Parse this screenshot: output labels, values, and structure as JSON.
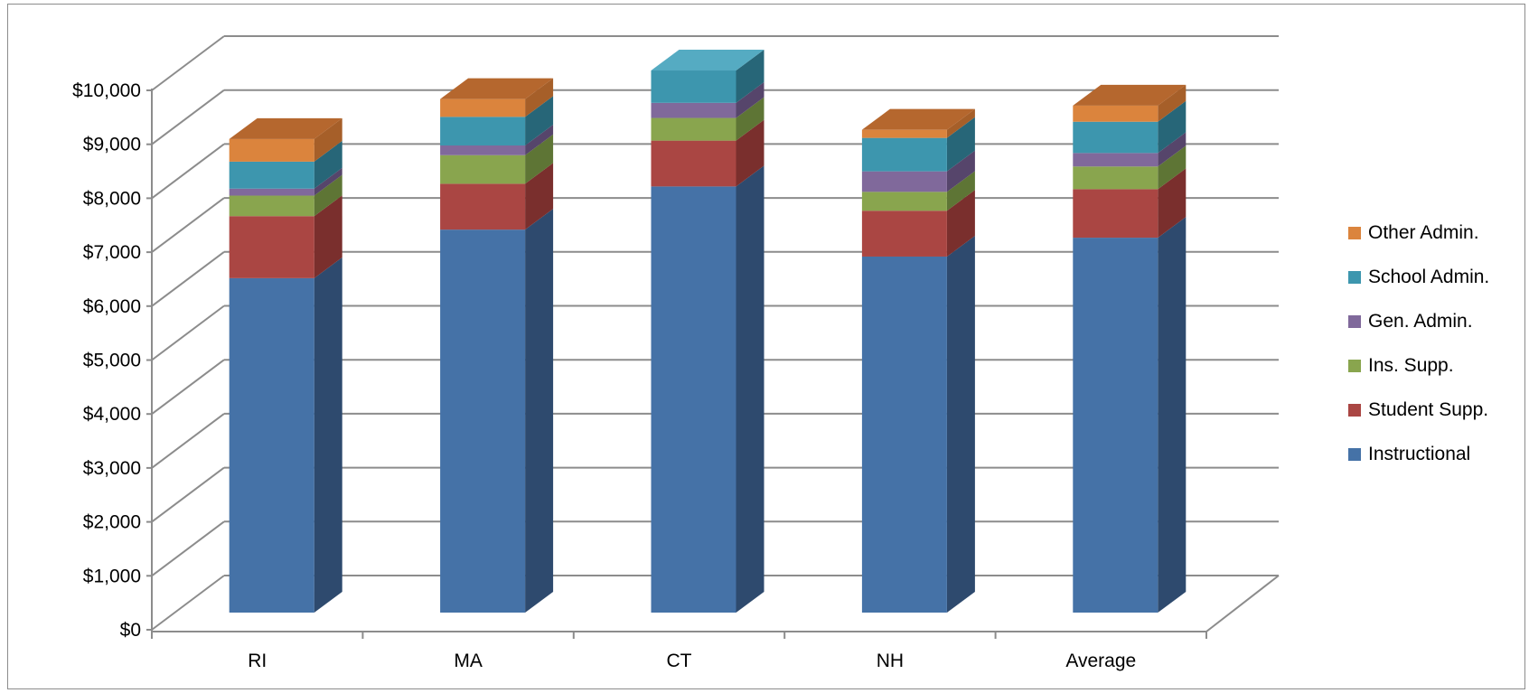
{
  "chart_data": {
    "type": "bar",
    "stacked": true,
    "three_d": true,
    "categories": [
      "RI",
      "MA",
      "CT",
      "NH",
      "Average"
    ],
    "series": [
      {
        "name": "Instructional",
        "color": "#4572A7",
        "side_color": "#2E4A6E",
        "top_color": "#5C88C0",
        "values": [
          6200,
          7100,
          7900,
          6600,
          6950
        ]
      },
      {
        "name": "Student Supp.",
        "color": "#AA4643",
        "side_color": "#7A2F2D",
        "top_color": "#C05A57",
        "values": [
          1150,
          850,
          850,
          850,
          900
        ]
      },
      {
        "name": "Ins. Supp.",
        "color": "#89A54E",
        "side_color": "#5E7535",
        "top_color": "#9FBB62",
        "values": [
          380,
          530,
          420,
          350,
          420
        ]
      },
      {
        "name": "Gen. Admin.",
        "color": "#80699B",
        "side_color": "#56456B",
        "top_color": "#9681B0",
        "values": [
          130,
          180,
          280,
          380,
          250
        ]
      },
      {
        "name": "School Admin.",
        "color": "#3D96AE",
        "side_color": "#276678",
        "top_color": "#55ABC2",
        "values": [
          500,
          530,
          600,
          620,
          580
        ]
      },
      {
        "name": "Other Admin.",
        "color": "#DB843D",
        "side_color": "#A65F29",
        "top_color": "#B5672E",
        "values": [
          420,
          330,
          0,
          150,
          300
        ]
      }
    ],
    "y_ticks": [
      "$0",
      "$1,000",
      "$2,000",
      "$3,000",
      "$4,000",
      "$5,000",
      "$6,000",
      "$7,000",
      "$8,000",
      "$9,000",
      "$10,000"
    ],
    "ylim": [
      0,
      10000
    ],
    "grid": true,
    "legend_position": "right",
    "legend_order": [
      "Other Admin.",
      "School Admin.",
      "Gen. Admin.",
      "Ins. Supp.",
      "Student Supp.",
      "Instructional"
    ],
    "colors": {
      "gridline": "#8c8c8c",
      "axis": "#8c8c8c",
      "frame": "#8c8c8c"
    }
  }
}
